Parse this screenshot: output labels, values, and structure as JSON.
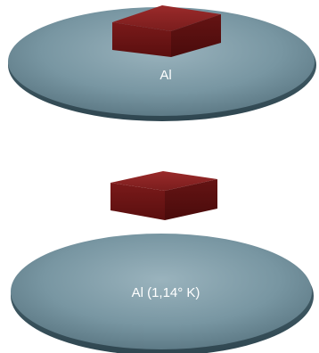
{
  "diagram": {
    "panels": [
      {
        "id": "top",
        "state": "resting",
        "disc_label": "Al",
        "colors": {
          "disc": "#7896a2",
          "disc_edge": "#3f5963",
          "block": "#6e1616"
        }
      },
      {
        "id": "bottom",
        "state": "levitating",
        "disc_label": "Al (1,14° K)",
        "colors": {
          "disc": "#7896a2",
          "disc_edge": "#3f5963",
          "block": "#6e1616"
        }
      }
    ]
  }
}
